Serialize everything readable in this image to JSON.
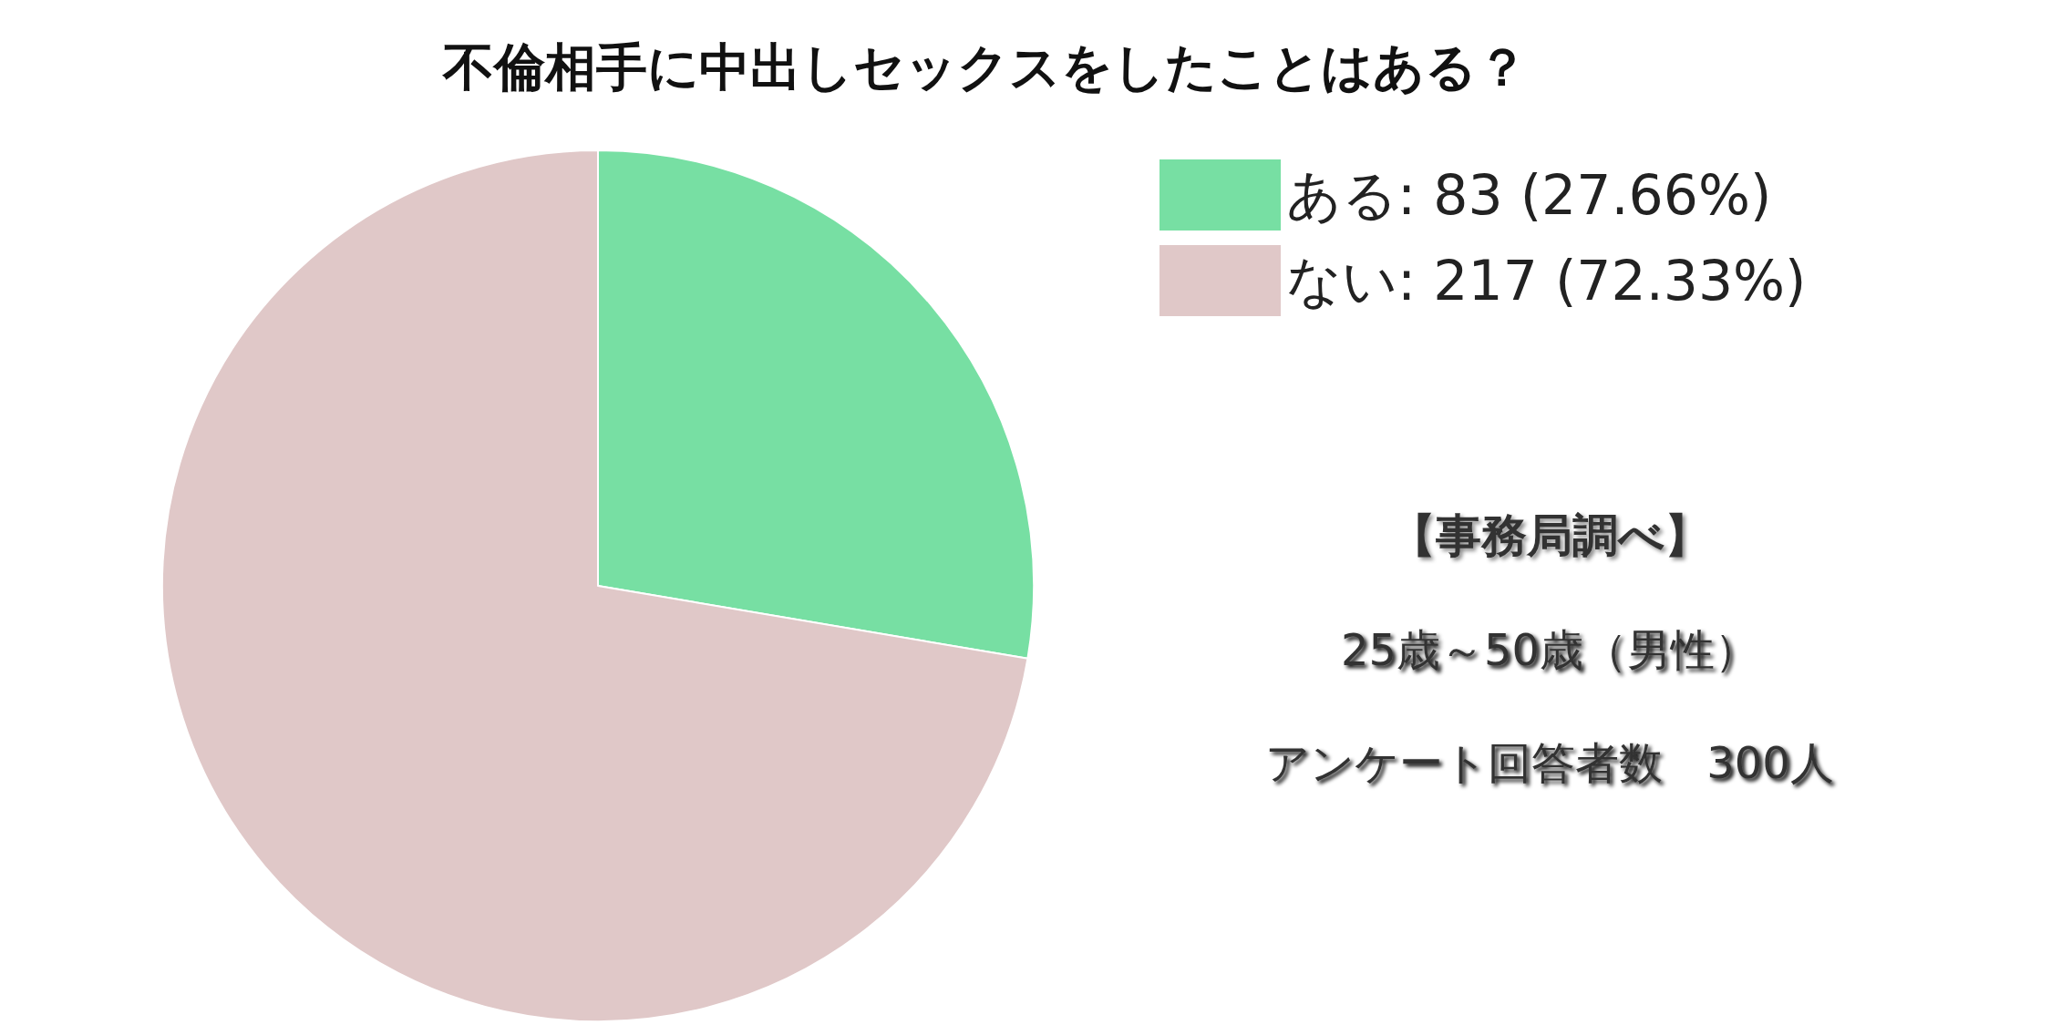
{
  "chart_data": {
    "type": "pie",
    "title": "不倫相手に中出しセックスをしたことはある？",
    "categories": [
      "ある",
      "ない"
    ],
    "values": [
      83,
      217
    ],
    "colors": [
      "#77dfa3",
      "#e0c8c8"
    ],
    "value_labels": [
      "83 (27.66%)",
      "217 (72.33%)"
    ],
    "legend": "top right",
    "annotations": [
      "【事務局調べ】",
      "25歳～50歳（男性）",
      "アンケート回答者数　300人"
    ]
  }
}
